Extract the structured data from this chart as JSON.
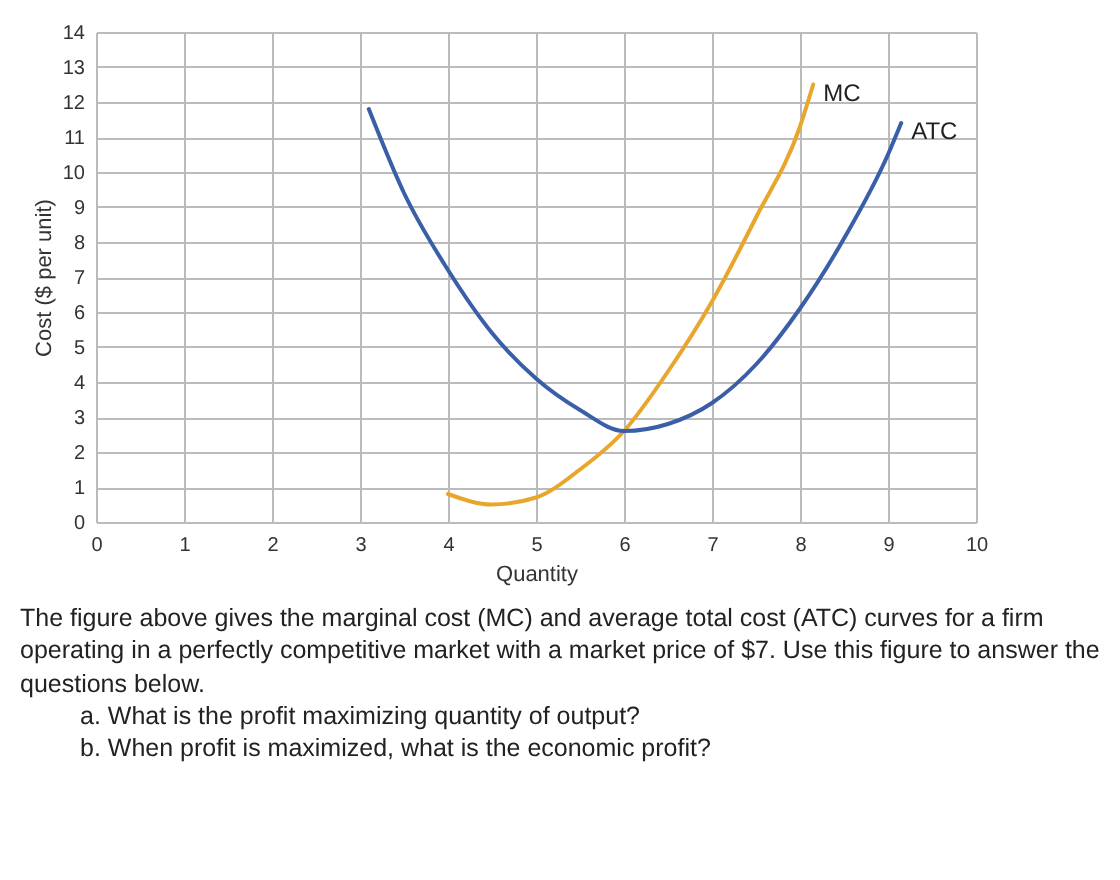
{
  "chart_data": {
    "type": "line",
    "xlabel": "Quantity",
    "ylabel": "Cost ($ per unit)",
    "xlim": [
      0,
      10
    ],
    "xticks": [
      0,
      1,
      2,
      3,
      4,
      5,
      6,
      7,
      8,
      9,
      10
    ],
    "ylim": [
      0,
      14
    ],
    "yticks": [
      0,
      1,
      2,
      3,
      4,
      5,
      6,
      7,
      8,
      9,
      10,
      11,
      12,
      13,
      14
    ],
    "grid": true,
    "legend": false,
    "series": [
      {
        "name": "MC",
        "color": "#e8a62c",
        "x": [
          4,
          4.5,
          5,
          5.5,
          6,
          6.5,
          7,
          7.5,
          8,
          8.15
        ],
        "values": [
          0.8,
          0.5,
          0.7,
          1.5,
          2.6,
          4.3,
          6.3,
          8.7,
          11.3,
          12.5
        ]
      },
      {
        "name": "ATC",
        "color": "#3a5fa8",
        "x": [
          3.1,
          3.5,
          4,
          4.5,
          5,
          5.5,
          6,
          6.5,
          7,
          7.5,
          8,
          8.5,
          9,
          9.15
        ],
        "values": [
          11.8,
          9.4,
          7.2,
          5.4,
          4.1,
          3.2,
          2.6,
          2.8,
          3.4,
          4.5,
          6.1,
          8.1,
          10.5,
          11.4
        ]
      }
    ],
    "annotations": [
      "The figure above gives the marginal cost (MC) and average total cost (ATC) curves for a firm operating in a perfectly competitive market with a market price of $7.  Use this figure to answer the questions below.",
      "a.  What is the profit maximizing quantity of output?",
      "b.  When profit is maximized, what is the economic profit?"
    ]
  }
}
